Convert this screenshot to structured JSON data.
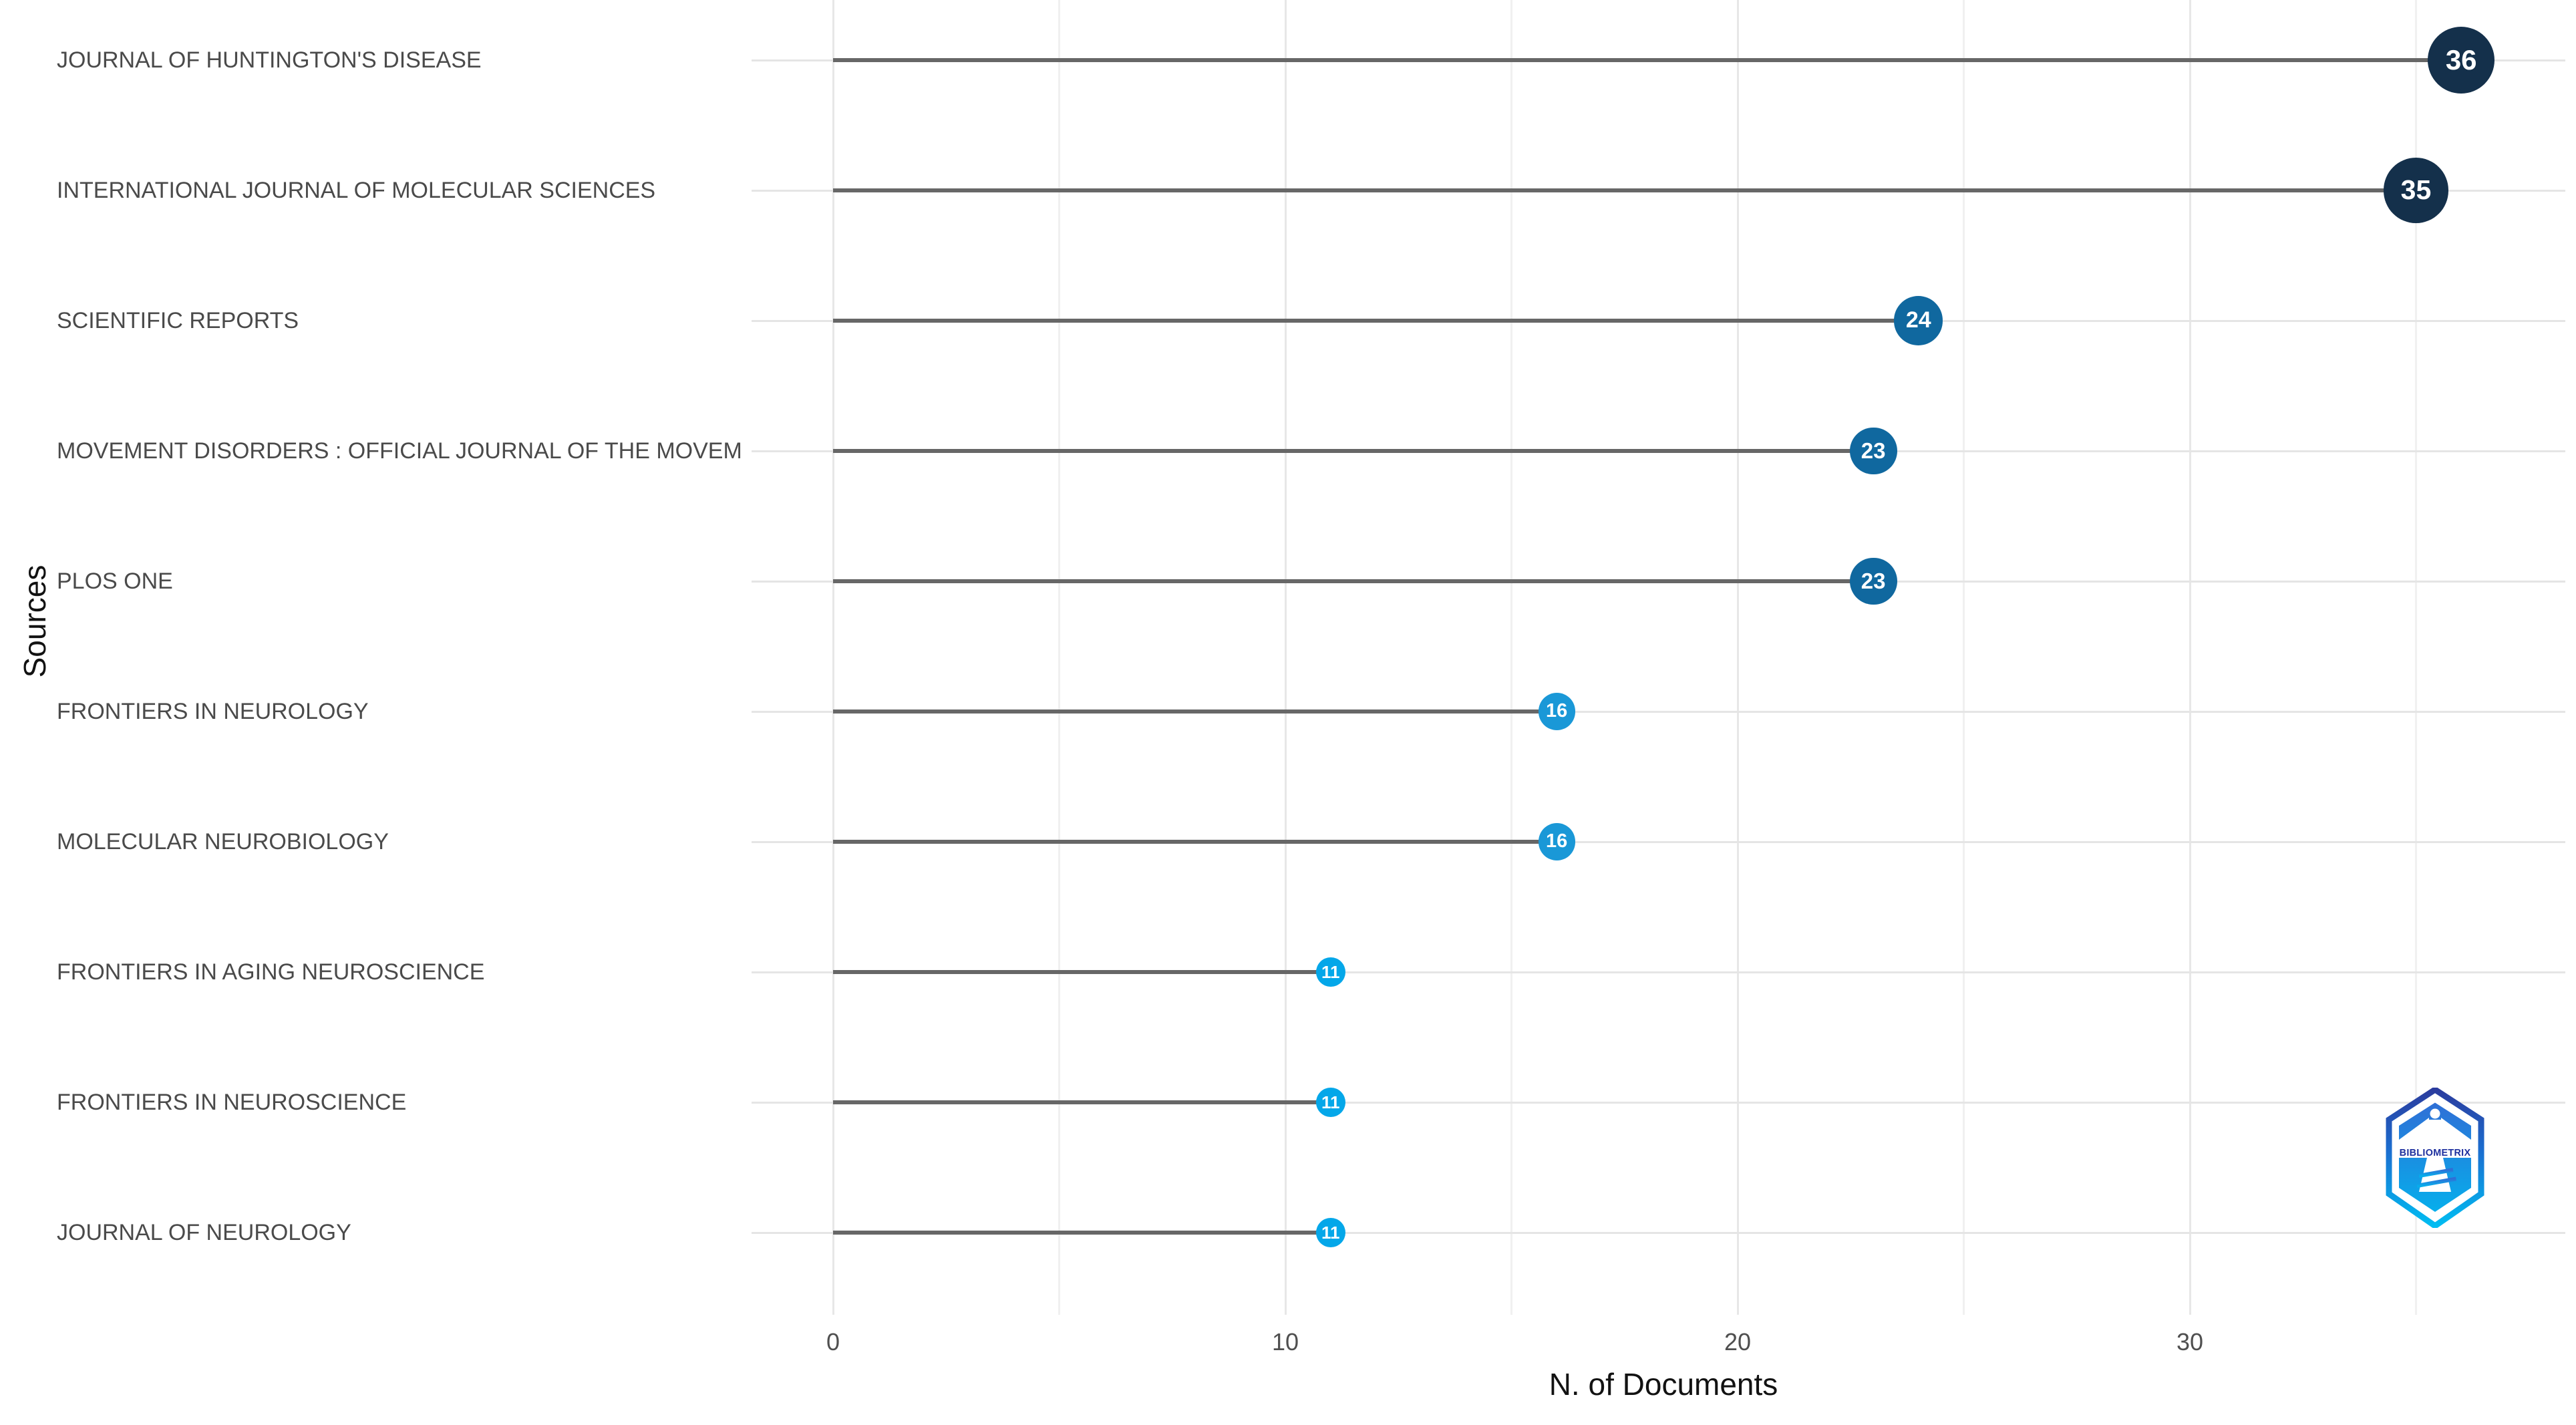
{
  "chart_data": {
    "type": "bar",
    "variant": "horizontal-lollipop",
    "title": "",
    "xlabel": "N. of Documents",
    "ylabel": "Sources",
    "categories": [
      "JOURNAL OF HUNTINGTON'S DISEASE",
      "INTERNATIONAL JOURNAL OF MOLECULAR SCIENCES",
      "SCIENTIFIC REPORTS",
      "MOVEMENT DISORDERS : OFFICIAL JOURNAL OF THE MOVEM",
      "PLOS ONE",
      "FRONTIERS IN NEUROLOGY",
      "MOLECULAR NEUROBIOLOGY",
      "FRONTIERS IN AGING NEUROSCIENCE",
      "FRONTIERS IN NEUROSCIENCE",
      "JOURNAL OF NEUROLOGY"
    ],
    "values": [
      36,
      35,
      24,
      23,
      23,
      16,
      16,
      11,
      11,
      11
    ],
    "point_colors": [
      "#14304b",
      "#14304b",
      "#10689f",
      "#10689f",
      "#10689f",
      "#1a98d7",
      "#1a98d7",
      "#04a7e9",
      "#04a7e9",
      "#04a7e9"
    ],
    "xlim": [
      0,
      38.5
    ],
    "xticks": [
      0,
      10,
      20,
      30
    ],
    "xticks_minor": [
      5,
      15,
      25,
      35
    ],
    "grid": "on",
    "legend": "none"
  },
  "watermark": {
    "text": "BIBLIOMETRIX"
  },
  "style_colors": {
    "background": "#ffffff",
    "stem": "#676767",
    "row_line": "#e5e5e5",
    "grid_major": "#e7e7e7",
    "grid_minor": "#f0f0f0",
    "category_label": "#4a4a4a",
    "tick_label": "#4f4f4f",
    "axis_title": "#121212",
    "dot_label": "#ffffff",
    "logo_blue_dark": "#2b3c9e",
    "logo_blue_mid": "#1b6ed0",
    "logo_blue_light": "#00bdf2",
    "logo_text_blue": "#1d2f9e"
  }
}
